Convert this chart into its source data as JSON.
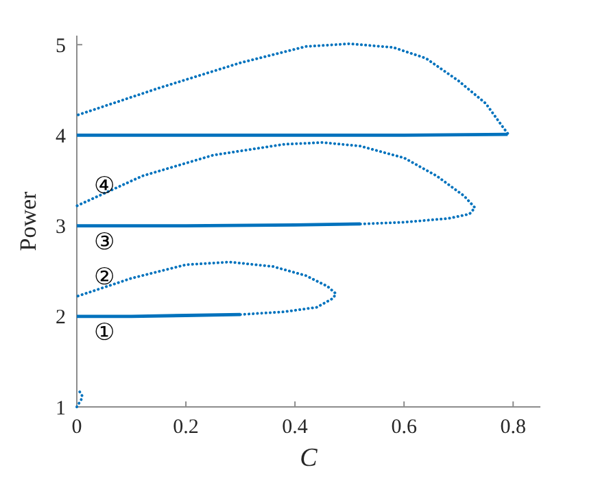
{
  "chart_data": {
    "type": "line",
    "xlabel": "C",
    "ylabel": "Power",
    "xlim": [
      0,
      0.85
    ],
    "ylim": [
      1,
      5.1
    ],
    "xticks": [
      0,
      0.2,
      0.4,
      0.6,
      0.8
    ],
    "yticks": [
      1,
      2,
      3,
      4,
      5
    ],
    "grid": false,
    "marker": "none",
    "series": [
      {
        "color": "#0072bd",
        "line_style": "solid",
        "x": [
          0,
          0.1,
          0.2,
          0.3
        ],
        "values": [
          2,
          2,
          2.01,
          2.02
        ]
      },
      {
        "color": "#0072bd",
        "line_style": "dotted",
        "x": [
          0.3,
          0.38,
          0.44,
          0.47,
          0.475,
          0.46,
          0.42,
          0.36,
          0.28,
          0.2,
          0.1,
          0
        ],
        "values": [
          2.02,
          2.05,
          2.1,
          2.2,
          2.25,
          2.33,
          2.45,
          2.55,
          2.6,
          2.57,
          2.42,
          2.22
        ]
      },
      {
        "color": "#0072bd",
        "line_style": "solid",
        "x": [
          0,
          0.2,
          0.4,
          0.52
        ],
        "values": [
          3,
          3,
          3.01,
          3.02
        ]
      },
      {
        "color": "#0072bd",
        "line_style": "dotted",
        "x": [
          0.52,
          0.6,
          0.68,
          0.72,
          0.73,
          0.71,
          0.66,
          0.6,
          0.52,
          0.45,
          0.38,
          0.25,
          0.12,
          0
        ],
        "values": [
          3.02,
          3.04,
          3.08,
          3.13,
          3.2,
          3.33,
          3.55,
          3.75,
          3.88,
          3.92,
          3.9,
          3.78,
          3.55,
          3.22
        ]
      },
      {
        "color": "#0072bd",
        "line_style": "solid",
        "x": [
          0,
          0.3,
          0.6,
          0.79
        ],
        "values": [
          4,
          4,
          4,
          4.01
        ]
      },
      {
        "color": "#0072bd",
        "line_style": "dotted",
        "x": [
          0.79,
          0.78,
          0.75,
          0.7,
          0.64,
          0.58,
          0.5,
          0.42,
          0.3,
          0.15,
          0
        ],
        "values": [
          4.02,
          4.1,
          4.35,
          4.6,
          4.85,
          4.97,
          5.01,
          4.98,
          4.8,
          4.52,
          4.22
        ]
      },
      {
        "color": "#0072bd",
        "line_style": "dotted",
        "x": [
          0,
          0.008,
          0.01,
          0.005,
          0
        ],
        "values": [
          1,
          1.08,
          1.12,
          1.17,
          1.18
        ]
      }
    ],
    "annotations": [
      "①",
      "②",
      "③",
      "④"
    ]
  }
}
